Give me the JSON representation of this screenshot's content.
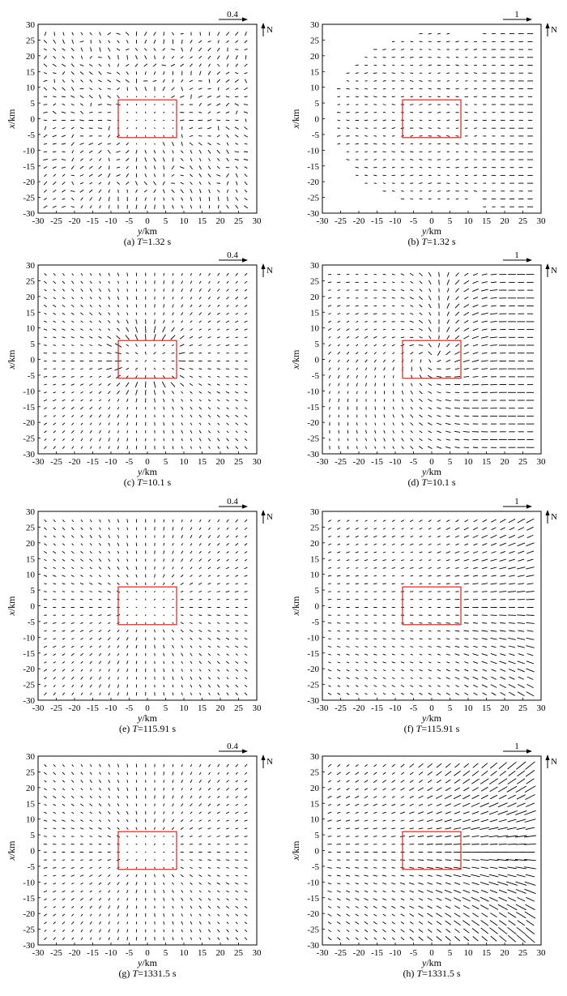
{
  "figure": {
    "axis_label_x_var": "y",
    "axis_label_x_unit": "/km",
    "axis_label_y_var": "x",
    "axis_label_y_unit": "/km",
    "north_label": "N",
    "ticks": [
      "-30",
      "-25",
      "-20",
      "-15",
      "-10",
      "-5",
      "0",
      "5",
      "10",
      "15",
      "20",
      "25",
      "30"
    ]
  },
  "chart_data": [
    {
      "panel": "a",
      "caption_prefix": "(a) ",
      "caption_var": "T",
      "caption_value": "=1.32 s",
      "type": "vector-field",
      "pattern": "radial-ring",
      "scale_label": "0.4",
      "xlim": [
        -30,
        30
      ],
      "ylim": [
        -30,
        30
      ],
      "grid": false,
      "source_box": {
        "y": [
          -8,
          8
        ],
        "x": [
          -6,
          6
        ]
      }
    },
    {
      "panel": "b",
      "caption_prefix": "(b) ",
      "caption_var": "T",
      "caption_value": "=1.32 s",
      "type": "vector-field",
      "pattern": "wavefront-east",
      "scale_label": "1",
      "xlim": [
        -30,
        30
      ],
      "ylim": [
        -30,
        30
      ],
      "grid": false,
      "source_box": {
        "y": [
          -8,
          8
        ],
        "x": [
          -6,
          6
        ]
      }
    },
    {
      "panel": "c",
      "caption_prefix": "(c) ",
      "caption_var": "T",
      "caption_value": "=10.1 s",
      "type": "vector-field",
      "pattern": "radial-strong",
      "scale_label": "0.4",
      "xlim": [
        -30,
        30
      ],
      "ylim": [
        -30,
        30
      ],
      "grid": false,
      "source_box": {
        "y": [
          -8,
          8
        ],
        "x": [
          -6,
          6
        ]
      }
    },
    {
      "panel": "d",
      "caption_prefix": "(d) ",
      "caption_var": "T",
      "caption_value": "=10.1 s",
      "type": "vector-field",
      "pattern": "east-drift-swirl",
      "scale_label": "1",
      "xlim": [
        -30,
        30
      ],
      "ylim": [
        -30,
        30
      ],
      "grid": false,
      "source_box": {
        "y": [
          -8,
          8
        ],
        "x": [
          -6,
          6
        ]
      }
    },
    {
      "panel": "e",
      "caption_prefix": "(e) ",
      "caption_var": "T",
      "caption_value": "=115.91 s",
      "type": "vector-field",
      "pattern": "radial",
      "scale_label": "0.4",
      "xlim": [
        -30,
        30
      ],
      "ylim": [
        -30,
        30
      ],
      "grid": false,
      "source_box": {
        "y": [
          -8,
          8
        ],
        "x": [
          -6,
          6
        ]
      }
    },
    {
      "panel": "f",
      "caption_prefix": "(f) ",
      "caption_var": "T",
      "caption_value": "=115.91 s",
      "type": "vector-field",
      "pattern": "east-uniform",
      "scale_label": "1",
      "xlim": [
        -30,
        30
      ],
      "ylim": [
        -30,
        30
      ],
      "grid": false,
      "source_box": {
        "y": [
          -8,
          8
        ],
        "x": [
          -6,
          6
        ]
      }
    },
    {
      "panel": "g",
      "caption_prefix": "(g) ",
      "caption_var": "T",
      "caption_value": "=1331.5 s",
      "type": "vector-field",
      "pattern": "radial",
      "scale_label": "0.4",
      "xlim": [
        -30,
        30
      ],
      "ylim": [
        -30,
        30
      ],
      "grid": false,
      "source_box": {
        "y": [
          -8,
          8
        ],
        "x": [
          -6,
          6
        ]
      }
    },
    {
      "panel": "h",
      "caption_prefix": "(h) ",
      "caption_var": "T",
      "caption_value": "=1331.5 s",
      "type": "vector-field",
      "pattern": "east-strong",
      "scale_label": "1",
      "xlim": [
        -30,
        30
      ],
      "ylim": [
        -30,
        30
      ],
      "grid": false,
      "source_box": {
        "y": [
          -8,
          8
        ],
        "x": [
          -6,
          6
        ]
      }
    }
  ]
}
